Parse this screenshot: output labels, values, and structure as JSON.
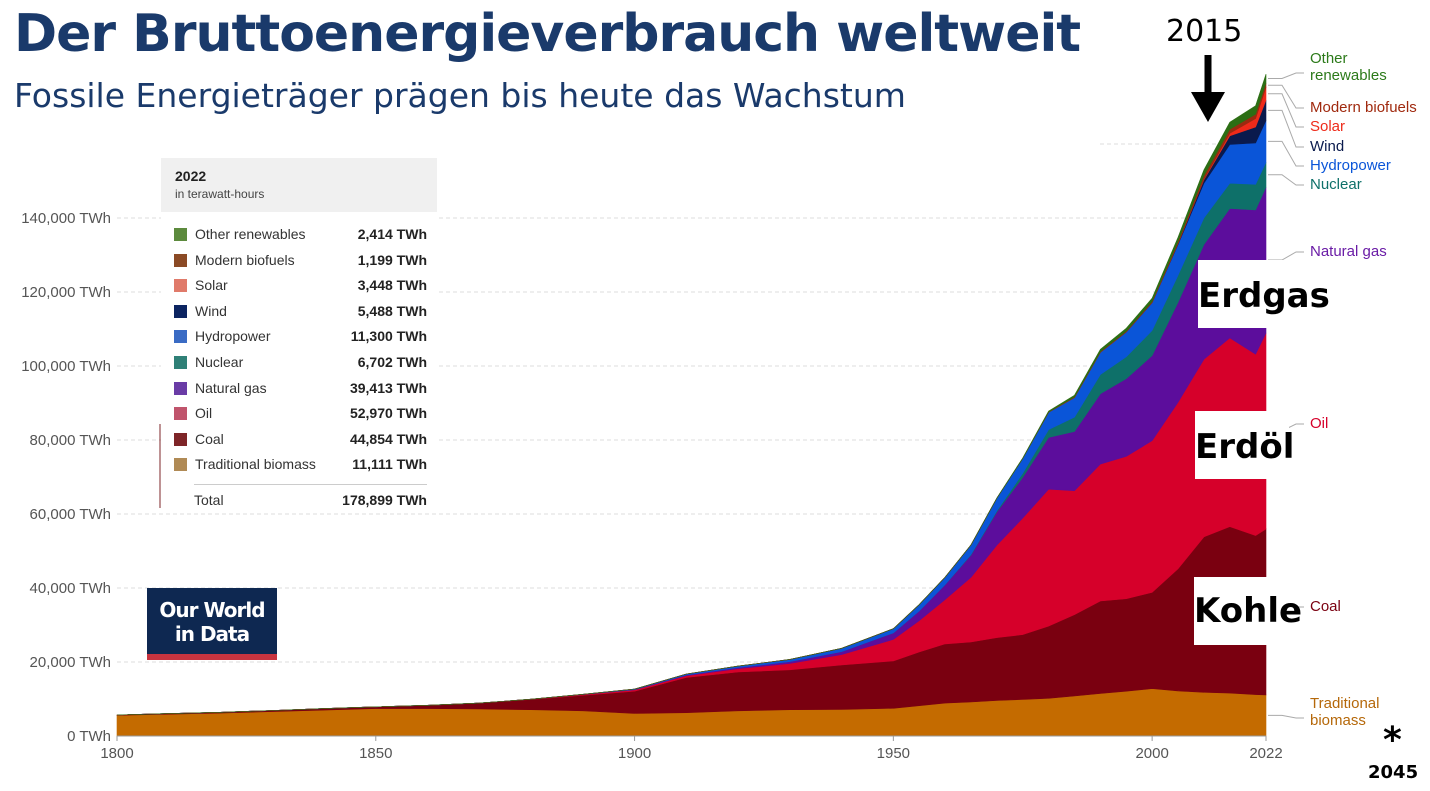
{
  "title": "Der Bruttoenergieverbrauch weltweit",
  "subtitle": "Fossile Energieträger prägen bis heute das Wachstum",
  "year_marker": "2015",
  "callouts": {
    "gas": "Erdgas",
    "oil": "Erdöl",
    "coal": "Kohle"
  },
  "logo": {
    "line1": "Our World",
    "line2": "in Data",
    "bg": "#0e2851",
    "accent": "#c8343f"
  },
  "footnote": {
    "star": "*",
    "year": "2045"
  },
  "legend": {
    "year": "2022",
    "unit": "in terawatt-hours",
    "rows": [
      {
        "name": "Other renewables",
        "value": "2,414 TWh",
        "color": "#5c8a3d"
      },
      {
        "name": "Modern biofuels",
        "value": "1,199 TWh",
        "color": "#8b4a25"
      },
      {
        "name": "Solar",
        "value": "3,448 TWh",
        "color": "#e07a6a"
      },
      {
        "name": "Wind",
        "value": "5,488 TWh",
        "color": "#0c2461"
      },
      {
        "name": "Hydropower",
        "value": "11,300 TWh",
        "color": "#3a6bc4"
      },
      {
        "name": "Nuclear",
        "value": "6,702 TWh",
        "color": "#2f8077"
      },
      {
        "name": "Natural gas",
        "value": "39,413 TWh",
        "color": "#6a3ca6"
      },
      {
        "name": "Oil",
        "value": "52,970 TWh",
        "color": "#c0546c"
      },
      {
        "name": "Coal",
        "value": "44,854 TWh",
        "color": "#7e2528"
      },
      {
        "name": "Traditional biomass",
        "value": "11,111 TWh",
        "color": "#b08a55"
      }
    ],
    "total_label": "Total",
    "total_value": "178,899 TWh"
  },
  "chart_data": {
    "type": "area",
    "stacked": true,
    "x": [
      1800,
      1810,
      1820,
      1830,
      1840,
      1850,
      1860,
      1870,
      1880,
      1890,
      1900,
      1910,
      1920,
      1930,
      1940,
      1950,
      1955,
      1960,
      1965,
      1970,
      1975,
      1980,
      1985,
      1990,
      1995,
      2000,
      2005,
      2010,
      2015,
      2020,
      2022
    ],
    "xlim": [
      1800,
      2022
    ],
    "ylim": [
      0,
      180000
    ],
    "xticks": [
      {
        "value": 1800,
        "label": "1800"
      },
      {
        "value": 1850,
        "label": "1850"
      },
      {
        "value": 1900,
        "label": "1900"
      },
      {
        "value": 1950,
        "label": "1950"
      },
      {
        "value": 2000,
        "label": "2000"
      },
      {
        "value": 2022,
        "label": "2022"
      }
    ],
    "yticks": [
      {
        "value": 0,
        "label": "0 TWh"
      },
      {
        "value": 20000,
        "label": "20,000 TWh"
      },
      {
        "value": 40000,
        "label": "40,000 TWh"
      },
      {
        "value": 60000,
        "label": "60,000 TWh"
      },
      {
        "value": 80000,
        "label": "80,000 TWh"
      },
      {
        "value": 100000,
        "label": "100,000 TWh"
      },
      {
        "value": 120000,
        "label": "120,000 TWh"
      },
      {
        "value": 140000,
        "label": "140,000 TWh"
      }
    ],
    "grid": true,
    "series": [
      {
        "name": "Traditional biomass",
        "color": "#c46b00",
        "label_color": "#b5680a",
        "values": [
          5600,
          5900,
          6200,
          6600,
          7000,
          7400,
          7400,
          7300,
          7100,
          6800,
          6100,
          6300,
          6800,
          7100,
          7200,
          7500,
          8200,
          8900,
          9200,
          9600,
          9900,
          10200,
          10800,
          11500,
          12100,
          12800,
          12200,
          11800,
          11600,
          11200,
          11111
        ]
      },
      {
        "name": "Coal",
        "color": "#7a0010",
        "label_color": "#7a0010",
        "values": [
          100,
          150,
          200,
          300,
          400,
          500,
          900,
          1600,
          2800,
          4200,
          6000,
          9500,
          10500,
          10800,
          12000,
          12800,
          14500,
          16000,
          16200,
          17000,
          17500,
          19500,
          22000,
          25000,
          25000,
          26000,
          33000,
          42000,
          45000,
          43000,
          44854
        ]
      },
      {
        "name": "Oil",
        "color": "#d6002a",
        "label_color": "#d6002a",
        "values": [
          0,
          0,
          0,
          0,
          0,
          0,
          0,
          0,
          50,
          200,
          400,
          500,
          900,
          1700,
          2800,
          5800,
          8500,
          12000,
          17500,
          25000,
          31500,
          37000,
          33500,
          37000,
          38500,
          41000,
          45000,
          48000,
          51000,
          49000,
          52970
        ]
      },
      {
        "name": "Natural gas",
        "color": "#5c0d9c",
        "label_color": "#6a1ca6",
        "values": [
          0,
          0,
          0,
          0,
          0,
          0,
          0,
          0,
          0,
          50,
          100,
          200,
          300,
          500,
          800,
          1800,
          2600,
          4000,
          6000,
          9000,
          11000,
          14000,
          16000,
          19000,
          21000,
          23000,
          27000,
          31000,
          35000,
          39000,
          39413
        ]
      },
      {
        "name": "Nuclear",
        "color": "#0e7069",
        "label_color": "#0e7069",
        "values": [
          0,
          0,
          0,
          0,
          0,
          0,
          0,
          0,
          0,
          0,
          0,
          0,
          0,
          0,
          0,
          0,
          0,
          20,
          150,
          300,
          1100,
          2100,
          3900,
          5200,
          5900,
          6800,
          7300,
          7200,
          6800,
          6900,
          6702
        ]
      },
      {
        "name": "Hydropower",
        "color": "#0a55d8",
        "label_color": "#0a55d8",
        "values": [
          0,
          0,
          0,
          0,
          0,
          0,
          0,
          0,
          0,
          10,
          100,
          250,
          400,
          600,
          900,
          1100,
          1700,
          2000,
          2600,
          3400,
          4000,
          4700,
          5300,
          6000,
          6700,
          7500,
          8300,
          9400,
          10500,
          11200,
          11300
        ]
      },
      {
        "name": "Wind",
        "color": "#0a1a4d",
        "label_color": "#0a1a4d",
        "values": [
          0,
          0,
          0,
          0,
          0,
          0,
          0,
          0,
          0,
          0,
          0,
          0,
          0,
          0,
          0,
          0,
          0,
          0,
          0,
          0,
          0,
          0,
          0,
          10,
          20,
          80,
          250,
          900,
          2300,
          4300,
          5488
        ]
      },
      {
        "name": "Solar",
        "color": "#ee2a1a",
        "label_color": "#ee2a1a",
        "values": [
          0,
          0,
          0,
          0,
          0,
          0,
          0,
          0,
          0,
          0,
          0,
          0,
          0,
          0,
          0,
          0,
          0,
          0,
          0,
          0,
          0,
          0,
          0,
          0,
          0,
          5,
          20,
          150,
          700,
          2300,
          3448
        ]
      },
      {
        "name": "Modern biofuels",
        "color": "#9a2a10",
        "label_color": "#a0290e",
        "values": [
          0,
          0,
          0,
          0,
          0,
          0,
          0,
          0,
          0,
          0,
          0,
          0,
          0,
          0,
          0,
          0,
          0,
          0,
          0,
          0,
          10,
          60,
          150,
          150,
          200,
          250,
          500,
          950,
          1100,
          1150,
          1199
        ]
      },
      {
        "name": "Other renewables",
        "color": "#2c6e14",
        "label_color": "#2c7a1a",
        "values": [
          0,
          0,
          0,
          0,
          0,
          0,
          0,
          0,
          0,
          0,
          0,
          0,
          0,
          0,
          0,
          0,
          0,
          0,
          0,
          50,
          120,
          250,
          450,
          650,
          800,
          900,
          1200,
          1600,
          1900,
          2300,
          2414
        ]
      }
    ]
  }
}
